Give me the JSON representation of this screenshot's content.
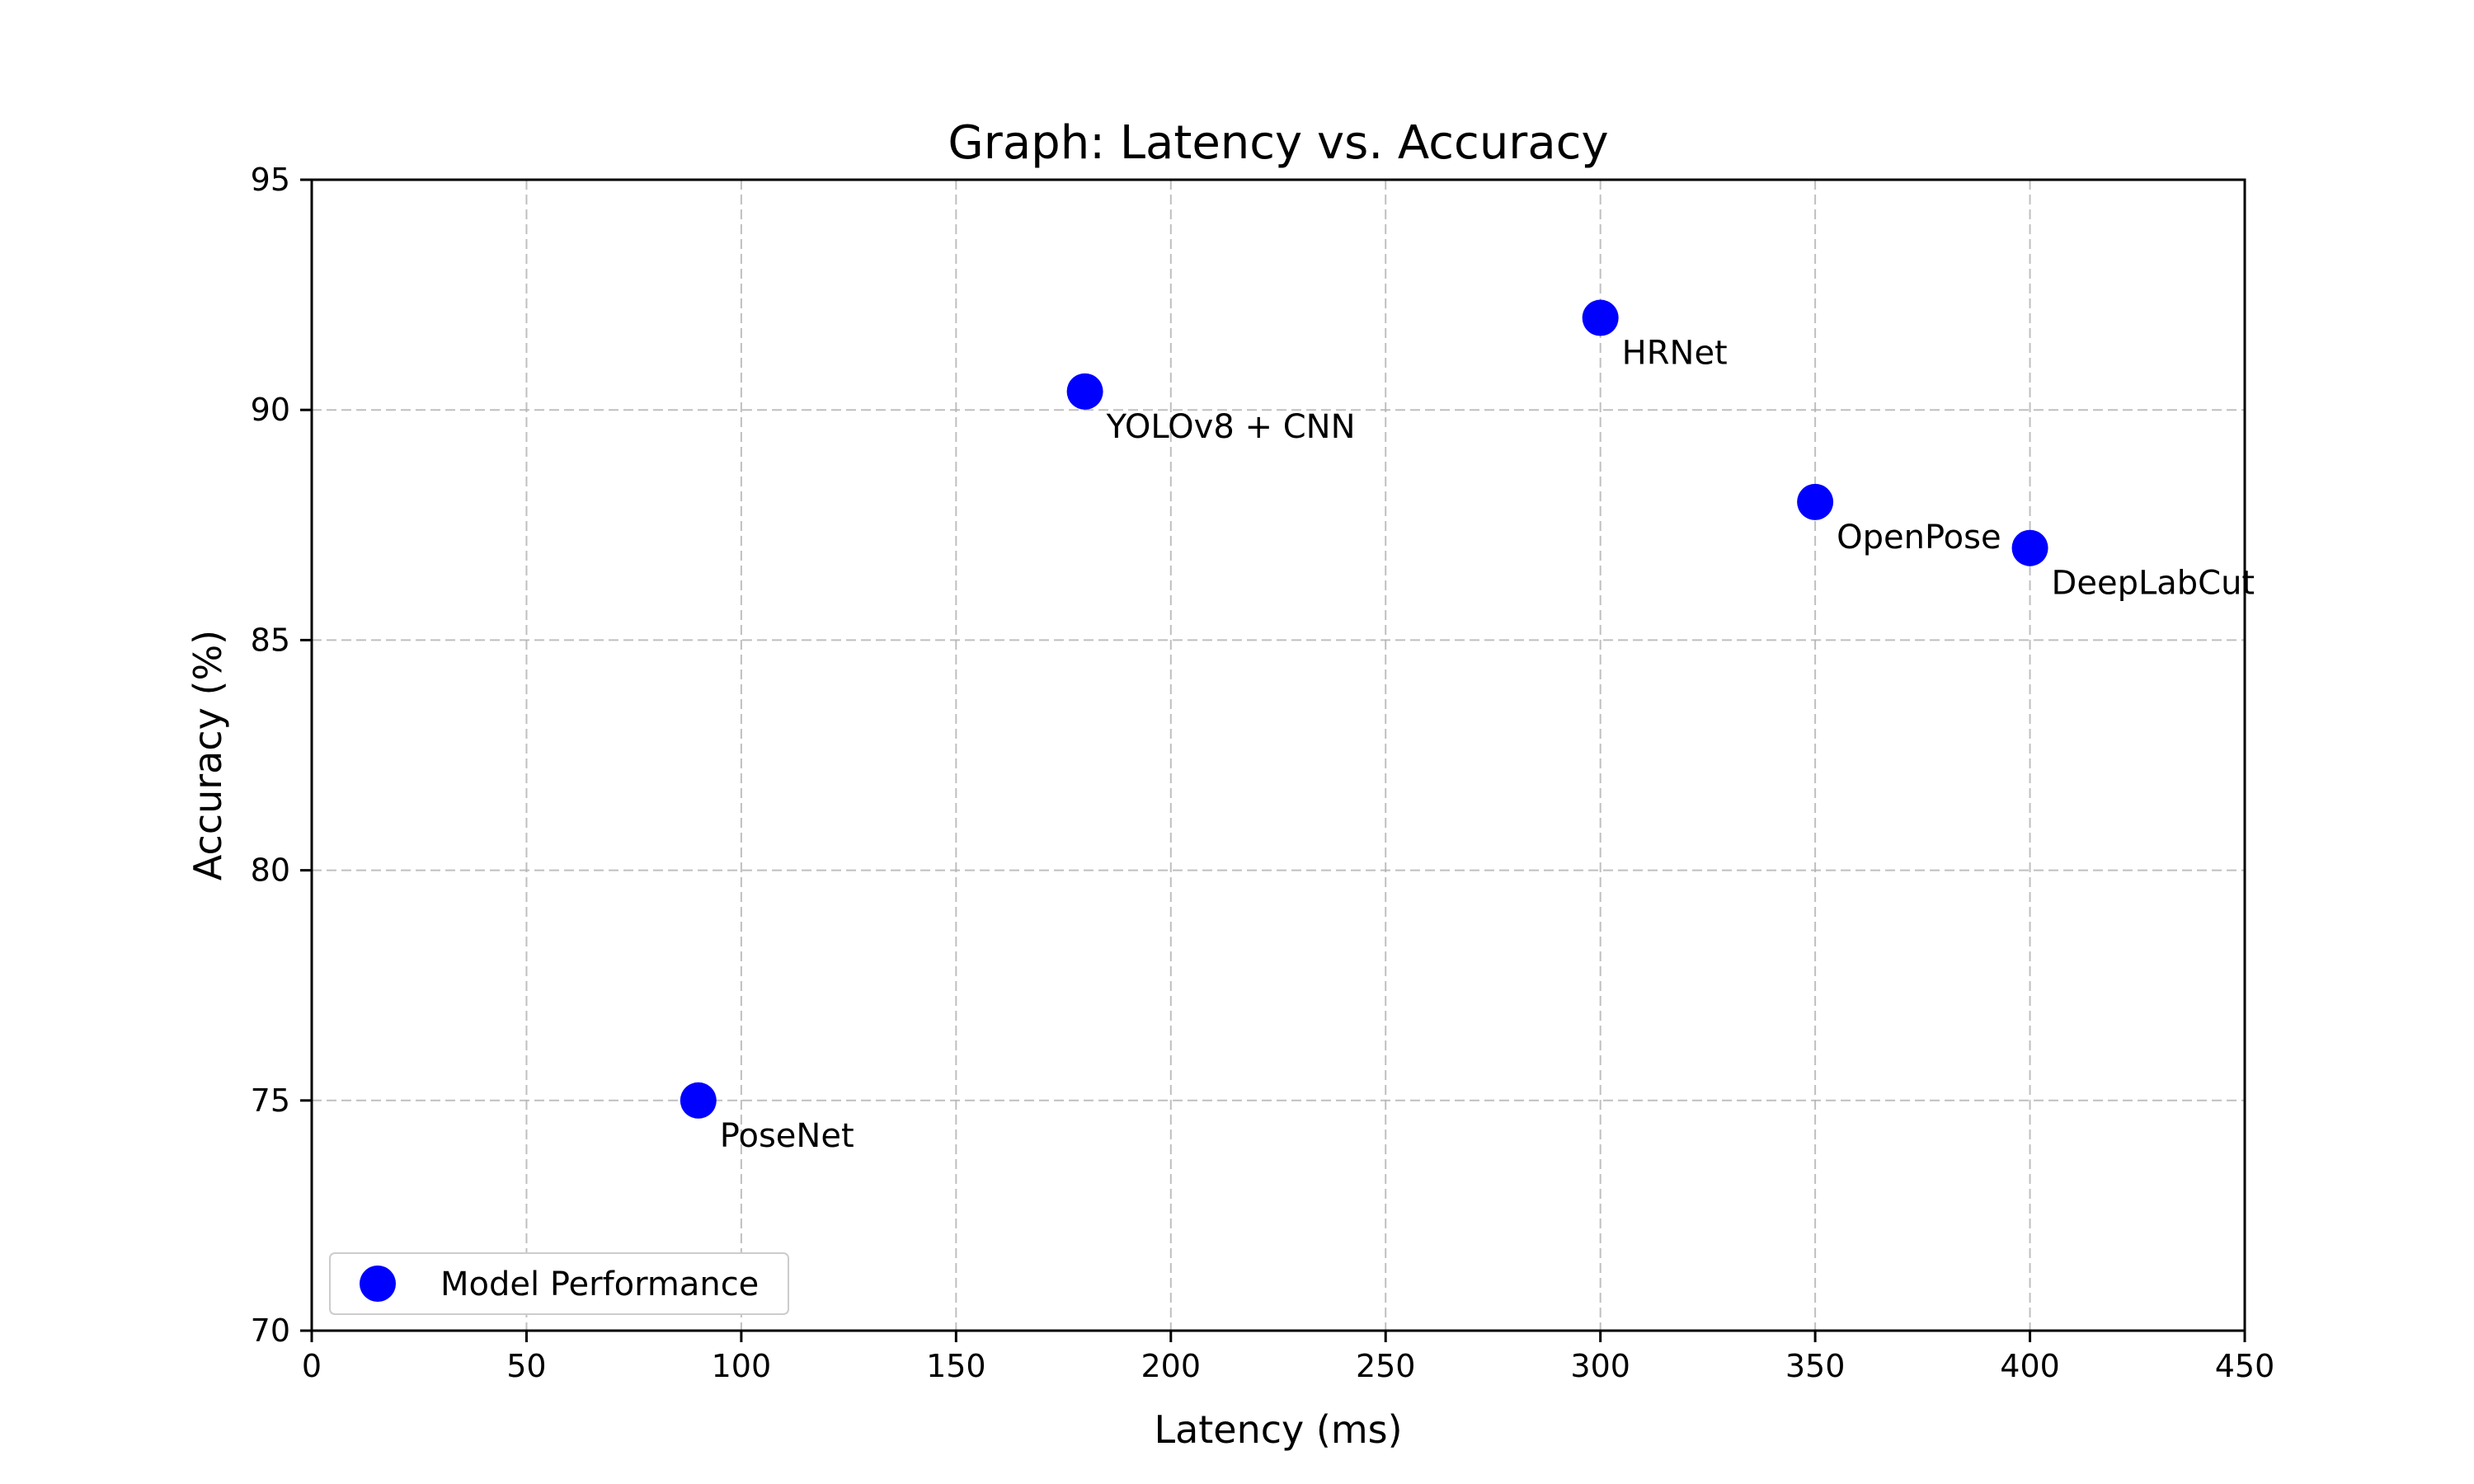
{
  "chart_data": {
    "type": "scatter",
    "title": "Graph: Latency vs. Accuracy",
    "xlabel": "Latency (ms)",
    "ylabel": "Accuracy (%)",
    "xlim": [
      0,
      450
    ],
    "ylim": [
      70,
      95
    ],
    "xticks": [
      0,
      50,
      100,
      150,
      200,
      250,
      300,
      350,
      400,
      450
    ],
    "yticks": [
      70,
      75,
      80,
      85,
      90,
      95
    ],
    "grid": true,
    "legend_position": "lower-left",
    "marker_color": "#0000ff",
    "series": [
      {
        "name": "Model Performance",
        "points": [
          {
            "label": "PoseNet",
            "x": 90,
            "y": 75
          },
          {
            "label": "YOLOv8 + CNN",
            "x": 180,
            "y": 90.4
          },
          {
            "label": "HRNet",
            "x": 300,
            "y": 92
          },
          {
            "label": "OpenPose",
            "x": 350,
            "y": 88
          },
          {
            "label": "DeepLabCut",
            "x": 400,
            "y": 87
          }
        ]
      }
    ]
  }
}
